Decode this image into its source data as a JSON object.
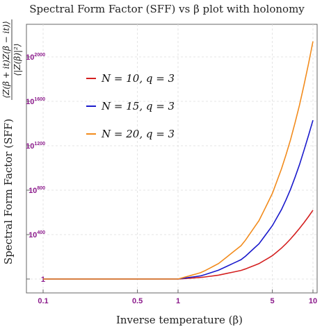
{
  "chart_data": {
    "type": "line",
    "title": "Spectral Form Factor (SFF) vs β plot with holonomy",
    "xlabel": "Inverse temperature (β)",
    "ylabel": {
      "text": "Spectral Form Factor (SFF)",
      "formula_numerator": "⟨Z(β + it)Z(β − it)⟩",
      "formula_denominator": "⟨|Z(β)|²⟩"
    },
    "x_scale": "log",
    "y_scale": "log",
    "xlim": [
      0.1,
      10
    ],
    "ylim_log10": [
      0,
      2200
    ],
    "x_ticks": [
      0.1,
      0.5,
      1,
      5,
      10
    ],
    "x_tick_labels": [
      "0.1",
      "0.5",
      "1",
      "5",
      "10"
    ],
    "y_ticks": [
      {
        "base": "1",
        "exp": ""
      },
      {
        "base": "10",
        "exp": "400"
      },
      {
        "base": "10",
        "exp": "800"
      },
      {
        "base": "10",
        "exp": "1200"
      },
      {
        "base": "10",
        "exp": "1600"
      },
      {
        "base": "10",
        "exp": "2000"
      }
    ],
    "y_tick_log10": [
      0,
      400,
      800,
      1200,
      1600,
      2000
    ],
    "grid": true,
    "legend_position": "top-left",
    "series": [
      {
        "name": "N = 10, q = 3",
        "color": "#d42020",
        "x": [
          0.1,
          0.5,
          1,
          1.5,
          2,
          3,
          4,
          5,
          6,
          7,
          8,
          9,
          10
        ],
        "y_log10": [
          0,
          0,
          0,
          15,
          35,
          80,
          140,
          210,
          290,
          375,
          460,
          540,
          620
        ]
      },
      {
        "name": "N = 15, q = 3",
        "color": "#1a1acc",
        "x": [
          0.1,
          0.5,
          1,
          1.5,
          2,
          3,
          4,
          5,
          6,
          7,
          8,
          9,
          10
        ],
        "y_log10": [
          0,
          0,
          0,
          30,
          80,
          180,
          320,
          480,
          650,
          840,
          1040,
          1240,
          1430
        ]
      },
      {
        "name": "N = 20, q = 3",
        "color": "#f28b1c",
        "x": [
          0.1,
          0.5,
          1,
          1.5,
          2,
          3,
          4,
          5,
          6,
          7,
          8,
          9,
          10
        ],
        "y_log10": [
          0,
          0,
          0,
          60,
          140,
          310,
          530,
          770,
          1030,
          1300,
          1580,
          1860,
          2140
        ]
      }
    ]
  }
}
